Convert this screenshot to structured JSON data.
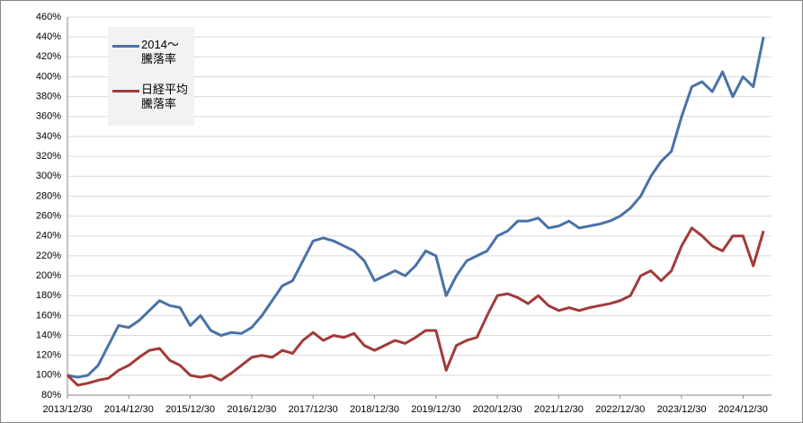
{
  "chart_data": {
    "type": "line",
    "categories": [
      "2013/12/30",
      null,
      null,
      null,
      null,
      null,
      "2014/12/30",
      null,
      null,
      null,
      null,
      null,
      "2015/12/30",
      null,
      null,
      null,
      null,
      null,
      "2016/12/30",
      null,
      null,
      null,
      null,
      null,
      "2017/12/30",
      null,
      null,
      null,
      null,
      null,
      "2018/12/30",
      null,
      null,
      null,
      null,
      null,
      "2019/12/30",
      null,
      null,
      null,
      null,
      null,
      "2020/12/30",
      null,
      null,
      null,
      null,
      null,
      "2021/12/30",
      null,
      null,
      null,
      null,
      null,
      "2022/12/30",
      null,
      null,
      null,
      null,
      null,
      "2023/12/30",
      null,
      null,
      null,
      null,
      null,
      "2024/12/30",
      null,
      null
    ],
    "series": [
      {
        "name": "2014～\n騰落率",
        "color": "#4a72a8",
        "values": [
          100,
          98,
          100,
          110,
          130,
          150,
          148,
          155,
          165,
          175,
          170,
          168,
          150,
          160,
          145,
          140,
          143,
          142,
          148,
          160,
          175,
          190,
          195,
          215,
          235,
          238,
          235,
          230,
          225,
          215,
          195,
          200,
          205,
          200,
          210,
          225,
          220,
          180,
          200,
          215,
          220,
          225,
          240,
          245,
          255,
          255,
          258,
          248,
          250,
          255,
          248,
          250,
          252,
          255,
          260,
          268,
          280,
          300,
          315,
          325,
          360,
          390,
          395,
          385,
          405,
          380,
          400,
          390,
          440
        ]
      },
      {
        "name": "日経平均\n騰落率",
        "color": "#a33a3a",
        "values": [
          100,
          90,
          92,
          95,
          97,
          105,
          110,
          118,
          125,
          127,
          115,
          110,
          100,
          98,
          100,
          95,
          102,
          110,
          118,
          120,
          118,
          125,
          122,
          135,
          143,
          135,
          140,
          138,
          142,
          130,
          125,
          130,
          135,
          132,
          138,
          145,
          145,
          105,
          130,
          135,
          138,
          160,
          180,
          182,
          178,
          172,
          180,
          170,
          165,
          168,
          165,
          168,
          170,
          172,
          175,
          180,
          200,
          205,
          195,
          205,
          230,
          248,
          240,
          230,
          225,
          240,
          240,
          210,
          245
        ]
      }
    ],
    "ylim": [
      80,
      460
    ],
    "yticks": [
      {
        "value": 80,
        "label": "80%"
      },
      {
        "value": 100,
        "label": "100%"
      },
      {
        "value": 120,
        "label": "120%"
      },
      {
        "value": 140,
        "label": "140%"
      },
      {
        "value": 160,
        "label": "160%"
      },
      {
        "value": 180,
        "label": "180%"
      },
      {
        "value": 200,
        "label": "200%"
      },
      {
        "value": 220,
        "label": "220%"
      },
      {
        "value": 240,
        "label": "240%"
      },
      {
        "value": 260,
        "label": "260%"
      },
      {
        "value": 280,
        "label": "280%"
      },
      {
        "value": 300,
        "label": "300%"
      },
      {
        "value": 320,
        "label": "320%"
      },
      {
        "value": 340,
        "label": "340%"
      },
      {
        "value": 360,
        "label": "360%"
      },
      {
        "value": 380,
        "label": "380%"
      },
      {
        "value": 400,
        "label": "400%"
      },
      {
        "value": 420,
        "label": "420%"
      },
      {
        "value": 440,
        "label": "440%"
      },
      {
        "value": 460,
        "label": "460%"
      }
    ],
    "grid": true
  }
}
